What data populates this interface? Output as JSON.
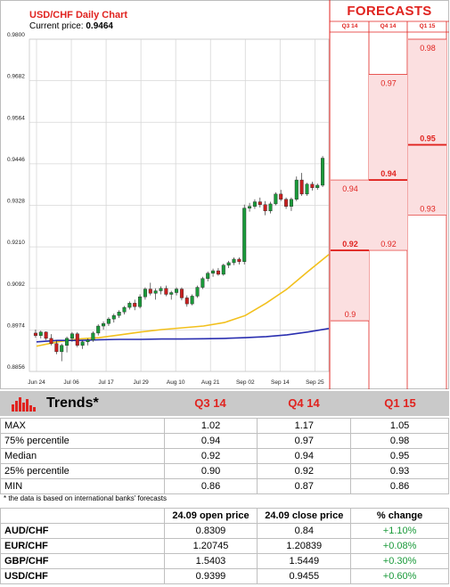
{
  "header": {
    "title": "USD/CHF Daily Chart",
    "price_label": "Current price:",
    "price_value": "0.9464"
  },
  "forecasts": {
    "title": "FORECASTS",
    "columns": [
      "Q3 14",
      "Q4 14",
      "Q1 15"
    ]
  },
  "colors": {
    "accent": "#e0231f",
    "ma_yellow": "#f2c01d",
    "ma_blue": "#2a2fb0",
    "bull": "#1a9a3a",
    "bear": "#c92020",
    "forecast_bg": "#fbdfe0",
    "positive": "#1a9a3a"
  },
  "chart_data": {
    "type": "line",
    "title": "USD/CHF Daily Chart",
    "ylim": [
      0.8856,
      0.98
    ],
    "y_ticks": [
      "0.9800",
      "0.9682",
      "0.9564",
      "0.9446",
      "0.9328",
      "0.9210",
      "0.9092",
      "0.8974",
      "0.8856"
    ],
    "x_ticks": [
      "Jun 24",
      "Jul 06",
      "Jul 17",
      "Jul 29",
      "Aug 10",
      "Aug 21",
      "Sep 02",
      "Sep 14",
      "Sep 25"
    ],
    "series": [
      {
        "name": "",
        "type": "candlestick",
        "values": [
          [
            0.8965,
            0.8975,
            0.8952,
            0.8958
          ],
          [
            0.8958,
            0.8972,
            0.895,
            0.8968
          ],
          [
            0.8968,
            0.897,
            0.8945,
            0.895
          ],
          [
            0.895,
            0.8962,
            0.893,
            0.8935
          ],
          [
            0.8935,
            0.8945,
            0.8905,
            0.8912
          ],
          [
            0.8912,
            0.8935,
            0.8885,
            0.893
          ],
          [
            0.893,
            0.8955,
            0.891,
            0.895
          ],
          [
            0.895,
            0.8968,
            0.894,
            0.8963
          ],
          [
            0.8963,
            0.8968,
            0.8925,
            0.893
          ],
          [
            0.893,
            0.8945,
            0.892,
            0.894
          ],
          [
            0.894,
            0.895,
            0.893,
            0.8945
          ],
          [
            0.8945,
            0.897,
            0.894,
            0.8965
          ],
          [
            0.8965,
            0.899,
            0.8958,
            0.8985
          ],
          [
            0.8985,
            0.8998,
            0.8975,
            0.8992
          ],
          [
            0.8992,
            0.901,
            0.8985,
            0.9005
          ],
          [
            0.9005,
            0.902,
            0.8995,
            0.9015
          ],
          [
            0.9015,
            0.903,
            0.9008,
            0.9025
          ],
          [
            0.9025,
            0.9042,
            0.9018,
            0.9038
          ],
          [
            0.9038,
            0.9055,
            0.9032,
            0.905
          ],
          [
            0.905,
            0.906,
            0.903,
            0.904
          ],
          [
            0.904,
            0.9075,
            0.9035,
            0.9068
          ],
          [
            0.9068,
            0.9095,
            0.906,
            0.909
          ],
          [
            0.909,
            0.9108,
            0.9072,
            0.9078
          ],
          [
            0.9078,
            0.9092,
            0.906,
            0.9085
          ],
          [
            0.9085,
            0.9098,
            0.9075,
            0.9092
          ],
          [
            0.9092,
            0.91,
            0.907,
            0.9075
          ],
          [
            0.9075,
            0.9085,
            0.906,
            0.908
          ],
          [
            0.908,
            0.9095,
            0.9072,
            0.909
          ],
          [
            0.909,
            0.9095,
            0.9058,
            0.9065
          ],
          [
            0.9065,
            0.9072,
            0.904,
            0.9048
          ],
          [
            0.9048,
            0.9075,
            0.9044,
            0.907
          ],
          [
            0.907,
            0.91,
            0.9065,
            0.9095
          ],
          [
            0.9095,
            0.9125,
            0.909,
            0.912
          ],
          [
            0.912,
            0.914,
            0.9112,
            0.9135
          ],
          [
            0.9135,
            0.9148,
            0.9125,
            0.9142
          ],
          [
            0.9142,
            0.915,
            0.9128,
            0.9132
          ],
          [
            0.9132,
            0.9162,
            0.9128,
            0.9158
          ],
          [
            0.9158,
            0.917,
            0.915,
            0.9165
          ],
          [
            0.9165,
            0.918,
            0.9158,
            0.9175
          ],
          [
            0.9175,
            0.918,
            0.916,
            0.9168
          ],
          [
            0.9168,
            0.933,
            0.916,
            0.932
          ],
          [
            0.932,
            0.9335,
            0.931,
            0.9325
          ],
          [
            0.9325,
            0.9345,
            0.9318,
            0.9338
          ],
          [
            0.9338,
            0.935,
            0.9322,
            0.933
          ],
          [
            0.933,
            0.934,
            0.93,
            0.9312
          ],
          [
            0.9312,
            0.9338,
            0.9305,
            0.9332
          ],
          [
            0.9332,
            0.9365,
            0.9328,
            0.936
          ],
          [
            0.936,
            0.9372,
            0.934,
            0.9345
          ],
          [
            0.9345,
            0.935,
            0.9318,
            0.9325
          ],
          [
            0.9325,
            0.935,
            0.9312,
            0.9345
          ],
          [
            0.9345,
            0.941,
            0.934,
            0.94
          ],
          [
            0.94,
            0.942,
            0.9355,
            0.936
          ],
          [
            0.936,
            0.9392,
            0.9355,
            0.9388
          ],
          [
            0.9388,
            0.9395,
            0.937,
            0.9378
          ],
          [
            0.9378,
            0.939,
            0.9372,
            0.9385
          ],
          [
            0.9385,
            0.9468,
            0.938,
            0.9462
          ]
        ]
      },
      {
        "name": "",
        "type": "line",
        "values": [
          0.8928,
          0.894,
          0.8948,
          0.8952,
          0.896,
          0.8968,
          0.8975,
          0.898,
          0.8985,
          0.8995,
          0.9015,
          0.905,
          0.909,
          0.914,
          0.9188
        ]
      },
      {
        "name": "",
        "type": "line",
        "values": [
          0.894,
          0.8944,
          0.8944,
          0.8946,
          0.8947,
          0.8947,
          0.8948,
          0.8948,
          0.8949,
          0.895,
          0.8952,
          0.8955,
          0.896,
          0.8968,
          0.8978
        ]
      }
    ],
    "forecast_columns": [
      {
        "label": "Q3 14",
        "max": 0.94,
        "median": 0.92,
        "min": 0.9
      },
      {
        "label": "Q4 14",
        "max": 0.97,
        "median": 0.94,
        "min": 0.92
      },
      {
        "label": "Q1 15",
        "max": 0.98,
        "median": 0.95,
        "min": 0.93
      }
    ]
  },
  "forecast_labels": {
    "q3": [
      "0.94",
      "0.92",
      "0.9"
    ],
    "q4": [
      "0.97",
      "0.94",
      "0.92"
    ],
    "q1": [
      "0.98",
      "0.95",
      "0.93"
    ]
  },
  "trends": {
    "title": "Trends*",
    "columns": [
      "Q3 14",
      "Q4 14",
      "Q1 15"
    ],
    "rows": [
      {
        "label": "MAX",
        "values": [
          "1.02",
          "1.17",
          "1.05"
        ]
      },
      {
        "label": "75% percentile",
        "values": [
          "0.94",
          "0.97",
          "0.98"
        ]
      },
      {
        "label": "Median",
        "values": [
          "0.92",
          "0.94",
          "0.95"
        ]
      },
      {
        "label": "25% percentile",
        "values": [
          "0.90",
          "0.92",
          "0.93"
        ]
      },
      {
        "label": "MIN",
        "values": [
          "0.86",
          "0.87",
          "0.86"
        ]
      }
    ],
    "note": "* the data is based on international banks' forecasts"
  },
  "fx": {
    "headers": [
      "",
      "24.09 open price",
      "24.09 close price",
      "% change"
    ],
    "rows": [
      {
        "pair": "AUD/CHF",
        "open": "0.8309",
        "close": "0.84",
        "change": "+1.10%"
      },
      {
        "pair": "EUR/CHF",
        "open": "1.20745",
        "close": "1.20839",
        "change": "+0.08%"
      },
      {
        "pair": "GBP/CHF",
        "open": "1.5403",
        "close": "1.5449",
        "change": "+0.30%"
      },
      {
        "pair": "USD/CHF",
        "open": "0.9399",
        "close": "0.9455",
        "change": "+0.60%"
      }
    ]
  }
}
